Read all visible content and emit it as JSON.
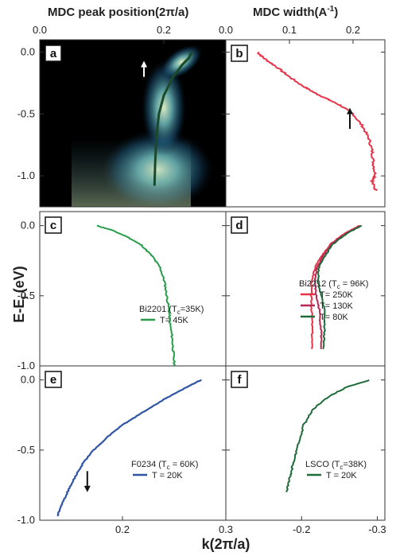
{
  "chart_data": [
    {
      "panel": "a",
      "type": "heatmap",
      "top_axis_title": "MDC peak position(2π/a)",
      "top_ticks": [
        "0.0",
        "0.2"
      ],
      "y_ticks": [
        "0.0",
        "-0.5",
        "-1.0"
      ],
      "ylim": [
        -1.25,
        0.1
      ],
      "colormap": [
        "#000000",
        "#0b2a3a",
        "#1e6a8c",
        "#5fb8c9",
        "#e8f5c8"
      ],
      "dispersion": {
        "x": [
          0.245,
          0.24,
          0.23,
          0.215,
          0.2,
          0.192,
          0.188,
          0.186,
          0.185
        ],
        "y": [
          0.0,
          -0.05,
          -0.1,
          -0.2,
          -0.35,
          -0.5,
          -0.7,
          -0.9,
          -1.08
        ]
      }
    },
    {
      "panel": "b",
      "type": "line",
      "top_axis_title": "MDC width(A-1)",
      "top_ticks": [
        "0.0",
        "0.1",
        "0.2"
      ],
      "xlim": [
        0.0,
        0.25
      ],
      "ylim": [
        -1.25,
        0.1
      ],
      "series": [
        {
          "color": "#e8344a",
          "x": [
            0.05,
            0.06,
            0.08,
            0.1,
            0.12,
            0.14,
            0.16,
            0.18,
            0.2,
            0.215,
            0.225,
            0.23,
            0.232,
            0.235,
            0.23,
            0.236
          ],
          "y": [
            0.0,
            -0.05,
            -0.12,
            -0.2,
            -0.27,
            -0.33,
            -0.38,
            -0.43,
            -0.5,
            -0.6,
            -0.7,
            -0.8,
            -0.9,
            -1.0,
            -1.05,
            -1.12
          ]
        }
      ]
    },
    {
      "panel": "c",
      "type": "line",
      "y_ticks": [
        "0.0",
        "-0.5",
        "-1.0"
      ],
      "xlim": [
        0.3,
        0.13
      ],
      "ylim": [
        -1.0,
        0.1
      ],
      "legend_title": "Bi2201 (T<sub>c</sub>=35K)",
      "series": [
        {
          "name": "T= 45K",
          "color": "#2a9d4a",
          "x": [
            0.248,
            0.235,
            0.22,
            0.207,
            0.197,
            0.19,
            0.186,
            0.184,
            0.182,
            0.181,
            0.179,
            0.178,
            0.177
          ],
          "y": [
            0.0,
            -0.03,
            -0.08,
            -0.14,
            -0.22,
            -0.3,
            -0.4,
            -0.5,
            -0.6,
            -0.7,
            -0.8,
            -0.9,
            -1.0
          ]
        }
      ]
    },
    {
      "panel": "d",
      "type": "line",
      "xlim": [
        -0.05,
        -0.3
      ],
      "ylim": [
        -1.0,
        0.1
      ],
      "legend_title": "Bi2212 (T<sub>c</sub> = 96K)",
      "series": [
        {
          "name": "T= 250K",
          "color": "#e8344a",
          "x": [
            -0.26,
            -0.235,
            -0.215,
            -0.2,
            -0.19,
            -0.185,
            -0.184,
            -0.185,
            -0.186,
            -0.185
          ],
          "y": [
            0.0,
            -0.06,
            -0.13,
            -0.22,
            -0.3,
            -0.4,
            -0.5,
            -0.6,
            -0.75,
            -0.88
          ]
        },
        {
          "name": "T= 130K",
          "color": "#b52a52",
          "x": [
            -0.262,
            -0.237,
            -0.217,
            -0.202,
            -0.193,
            -0.19,
            -0.192,
            -0.197,
            -0.2,
            -0.2
          ],
          "y": [
            0.0,
            -0.06,
            -0.13,
            -0.22,
            -0.3,
            -0.4,
            -0.5,
            -0.6,
            -0.75,
            -0.88
          ]
        },
        {
          "name": "T= 80K",
          "color": "#1f6b3a",
          "x": [
            -0.263,
            -0.239,
            -0.219,
            -0.205,
            -0.196,
            -0.195,
            -0.2,
            -0.205,
            -0.205,
            -0.203
          ],
          "y": [
            0.0,
            -0.06,
            -0.13,
            -0.22,
            -0.3,
            -0.4,
            -0.5,
            -0.6,
            -0.75,
            -0.88
          ]
        }
      ]
    },
    {
      "panel": "e",
      "type": "line",
      "x_ticks": [
        "0.2",
        "0.3"
      ],
      "y_ticks": [
        "0.0",
        "-0.5",
        "-1.0"
      ],
      "xlim": [
        0.12,
        0.3
      ],
      "ylim": [
        -1.0,
        0.1
      ],
      "legend_title": "F0234 (T<sub>c</sub> = 60K)",
      "series": [
        {
          "name": "T = 20K",
          "color": "#2f55a4",
          "x": [
            0.276,
            0.26,
            0.24,
            0.22,
            0.2,
            0.185,
            0.172,
            0.163,
            0.155,
            0.148,
            0.142,
            0.137
          ],
          "y": [
            0.0,
            -0.06,
            -0.14,
            -0.23,
            -0.32,
            -0.41,
            -0.5,
            -0.58,
            -0.68,
            -0.78,
            -0.88,
            -0.97
          ]
        }
      ]
    },
    {
      "panel": "f",
      "type": "line",
      "x_ticks": [
        "-0.2",
        "-0.3"
      ],
      "xlim": [
        -0.1,
        -0.31
      ],
      "ylim": [
        -1.0,
        0.1
      ],
      "legend_title": "LSCO (T<sub>c</sub>=38K)",
      "series": [
        {
          "name": "T = 20K",
          "color": "#1f6b3a",
          "x": [
            -0.29,
            -0.26,
            -0.235,
            -0.215,
            -0.203,
            -0.196,
            -0.19,
            -0.186,
            -0.183,
            -0.18
          ],
          "y": [
            0.0,
            -0.05,
            -0.12,
            -0.21,
            -0.32,
            -0.45,
            -0.57,
            -0.66,
            -0.73,
            -0.8
          ]
        }
      ]
    }
  ],
  "labels": {
    "top_left_title": "MDC peak position(2π/a)",
    "top_right_title_main": "MDC width(A",
    "top_right_title_sup": "-1",
    "top_right_title_close": ")",
    "y_axis_title": "E-E",
    "y_axis_sub": "F",
    "y_axis_units": "(eV)",
    "x_axis_title": "k(2π/a)",
    "panel_letters": [
      "a",
      "b",
      "c",
      "d",
      "e",
      "f"
    ]
  }
}
